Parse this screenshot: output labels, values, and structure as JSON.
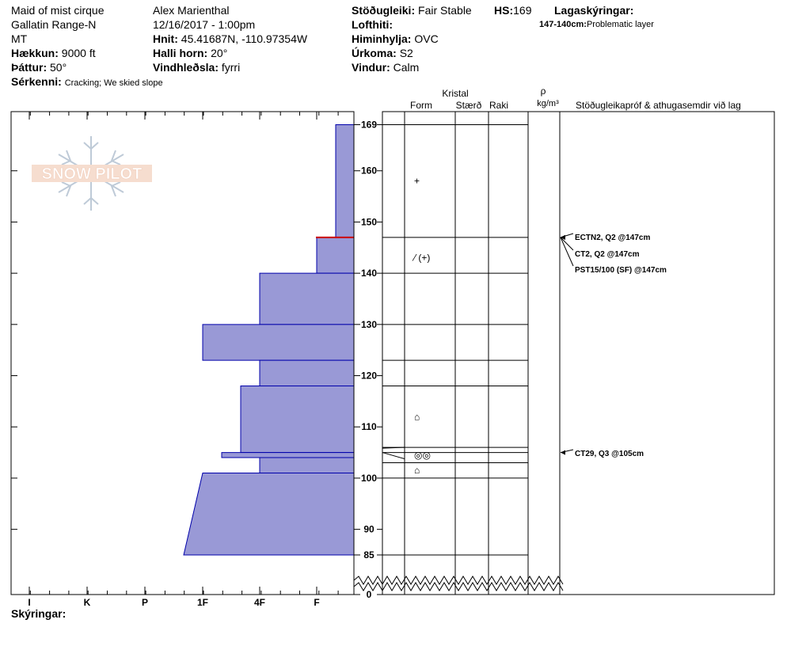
{
  "header": {
    "location": "Maid of mist cirque",
    "range": "Gallatin Range-N",
    "state": "MT",
    "elevation_label": "Hækkun:",
    "elevation": "9000 ft",
    "aspect_label": "Þáttur:",
    "aspect": "50°",
    "features_label": "Sérkenni:",
    "features": "Cracking;  We skied slope",
    "observer": "Alex Marienthal",
    "datetime": "12/16/2017 - 1:00pm",
    "coords_label": "Hnit:",
    "coords": "45.41687N, -110.97354W",
    "slope_label": "Halli horn:",
    "slope": "20°",
    "wind_load_label": "Vindhleðsla:",
    "wind_load": "fyrri",
    "stability_label": "Stöðugleiki:",
    "stability": "Fair Stable",
    "hs_label": "HS:",
    "hs": "169",
    "air_temp_label": "Lofthiti:",
    "sky_label": "Himinhylja:",
    "sky": "OVC",
    "precip_label": "Úrkoma:",
    "precip": "S2",
    "wind_label": "Vindur:",
    "wind": "Calm",
    "legend_title": "Lagaskýringar:",
    "legend_range": "147-140cm:",
    "legend_text": "Problematic layer"
  },
  "columns": {
    "crystal": "Kristal",
    "form": "Form",
    "size": "Stærð",
    "moisture": "Raki",
    "rho": "ρ",
    "density_unit": "kg/m³",
    "tests": "Stöðugleikapróf & athugasemdir við lag"
  },
  "footer": {
    "notes_label": "Skýringar:"
  },
  "logo": {
    "text": "SNOW PILOT"
  },
  "colors": {
    "fill": "#9999d6",
    "edge": "#0000aa",
    "problem": "#cc0000"
  },
  "chart_data": {
    "type": "snow-profile",
    "hardness_scale": [
      "I",
      "K",
      "P",
      "1F",
      "4F",
      "F"
    ],
    "hardness_axis_order": "left-to-right: I, K, P, 1F, 4F, F (hardness decreases to the right)",
    "height_unit": "cm",
    "height_ticks": [
      169,
      160,
      150,
      140,
      130,
      120,
      110,
      100,
      90,
      85,
      0
    ],
    "total_height": 169,
    "ground_break_between": [
      0,
      85
    ],
    "layer_boundaries": [
      169,
      147,
      140,
      130,
      123,
      118,
      106,
      105,
      103,
      100,
      85
    ],
    "hardness_profile": [
      {
        "top": 169,
        "bottom": 147,
        "hardness_top": "F-",
        "hardness_bottom": "F-"
      },
      {
        "top": 147,
        "bottom": 140,
        "hardness_top": "F",
        "hardness_bottom": "F"
      },
      {
        "top": 140,
        "bottom": 130,
        "hardness_top": "4F",
        "hardness_bottom": "4F"
      },
      {
        "top": 130,
        "bottom": 123,
        "hardness_top": "1F",
        "hardness_bottom": "1F"
      },
      {
        "top": 123,
        "bottom": 118,
        "hardness_top": "4F",
        "hardness_bottom": "4F"
      },
      {
        "top": 118,
        "bottom": 105,
        "hardness_top": "4F+",
        "hardness_bottom": "4F+"
      },
      {
        "top": 105,
        "bottom": 104,
        "hardness_top": "1F-",
        "hardness_bottom": "1F-"
      },
      {
        "top": 104,
        "bottom": 101,
        "hardness_top": "4F",
        "hardness_bottom": "4F"
      },
      {
        "top": 101,
        "bottom": 85,
        "hardness_top": "1F",
        "hardness_bottom": "1F+"
      }
    ],
    "problem_layer": {
      "top": 147,
      "bottom": 140
    },
    "grain_forms": [
      {
        "height": 158,
        "symbol": "+"
      },
      {
        "height": 143,
        "symbol": "⁄ (+)"
      },
      {
        "height": 112,
        "symbol": "⌂"
      },
      {
        "height": 104.5,
        "symbol": "◎◎"
      },
      {
        "height": 101.5,
        "symbol": "⌂"
      }
    ],
    "tests": [
      {
        "label": "ECTN2, Q2 @147cm",
        "height": 147
      },
      {
        "label": "CT2, Q2 @147cm",
        "height": 147
      },
      {
        "label": "PST15/100 (SF) @147cm",
        "height": 147
      },
      {
        "label": "CT29, Q3 @105cm",
        "height": 105
      }
    ]
  }
}
